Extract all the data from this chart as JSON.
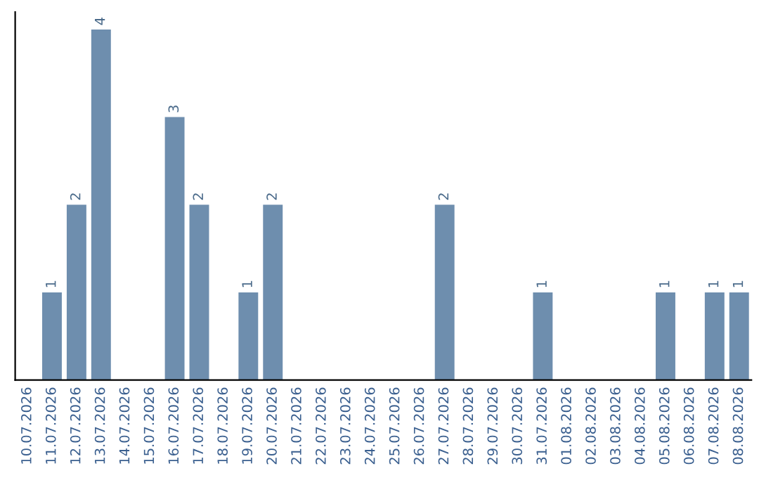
{
  "chart_data": {
    "type": "bar",
    "categories": [
      "10.07.2026",
      "11.07.2026",
      "12.07.2026",
      "13.07.2026",
      "14.07.2026",
      "15.07.2026",
      "16.07.2026",
      "17.07.2026",
      "18.07.2026",
      "19.07.2026",
      "20.07.2026",
      "21.07.2026",
      "22.07.2026",
      "23.07.2026",
      "24.07.2026",
      "25.07.2026",
      "26.07.2026",
      "27.07.2026",
      "28.07.2026",
      "29.07.2026",
      "30.07.2026",
      "31.07.2026",
      "01.08.2026",
      "02.08.2026",
      "03.08.2026",
      "04.08.2026",
      "05.08.2026",
      "06.08.2026",
      "07.08.2026",
      "08.08.2026"
    ],
    "values": [
      0,
      1,
      2,
      4,
      0,
      0,
      3,
      2,
      0,
      1,
      2,
      0,
      0,
      0,
      0,
      0,
      0,
      2,
      0,
      0,
      0,
      1,
      0,
      0,
      0,
      0,
      1,
      0,
      1,
      1
    ],
    "value_labels": [
      null,
      "1",
      "2",
      "4",
      null,
      null,
      "3",
      "2",
      null,
      "1",
      "2",
      null,
      null,
      null,
      null,
      null,
      null,
      "2",
      null,
      null,
      null,
      "1",
      null,
      null,
      null,
      null,
      "1",
      null,
      "1",
      "1"
    ],
    "color": "#6e8eae",
    "ylim": [
      0,
      4.2
    ],
    "tick_labels": "x",
    "grid": false,
    "legend": false
  }
}
